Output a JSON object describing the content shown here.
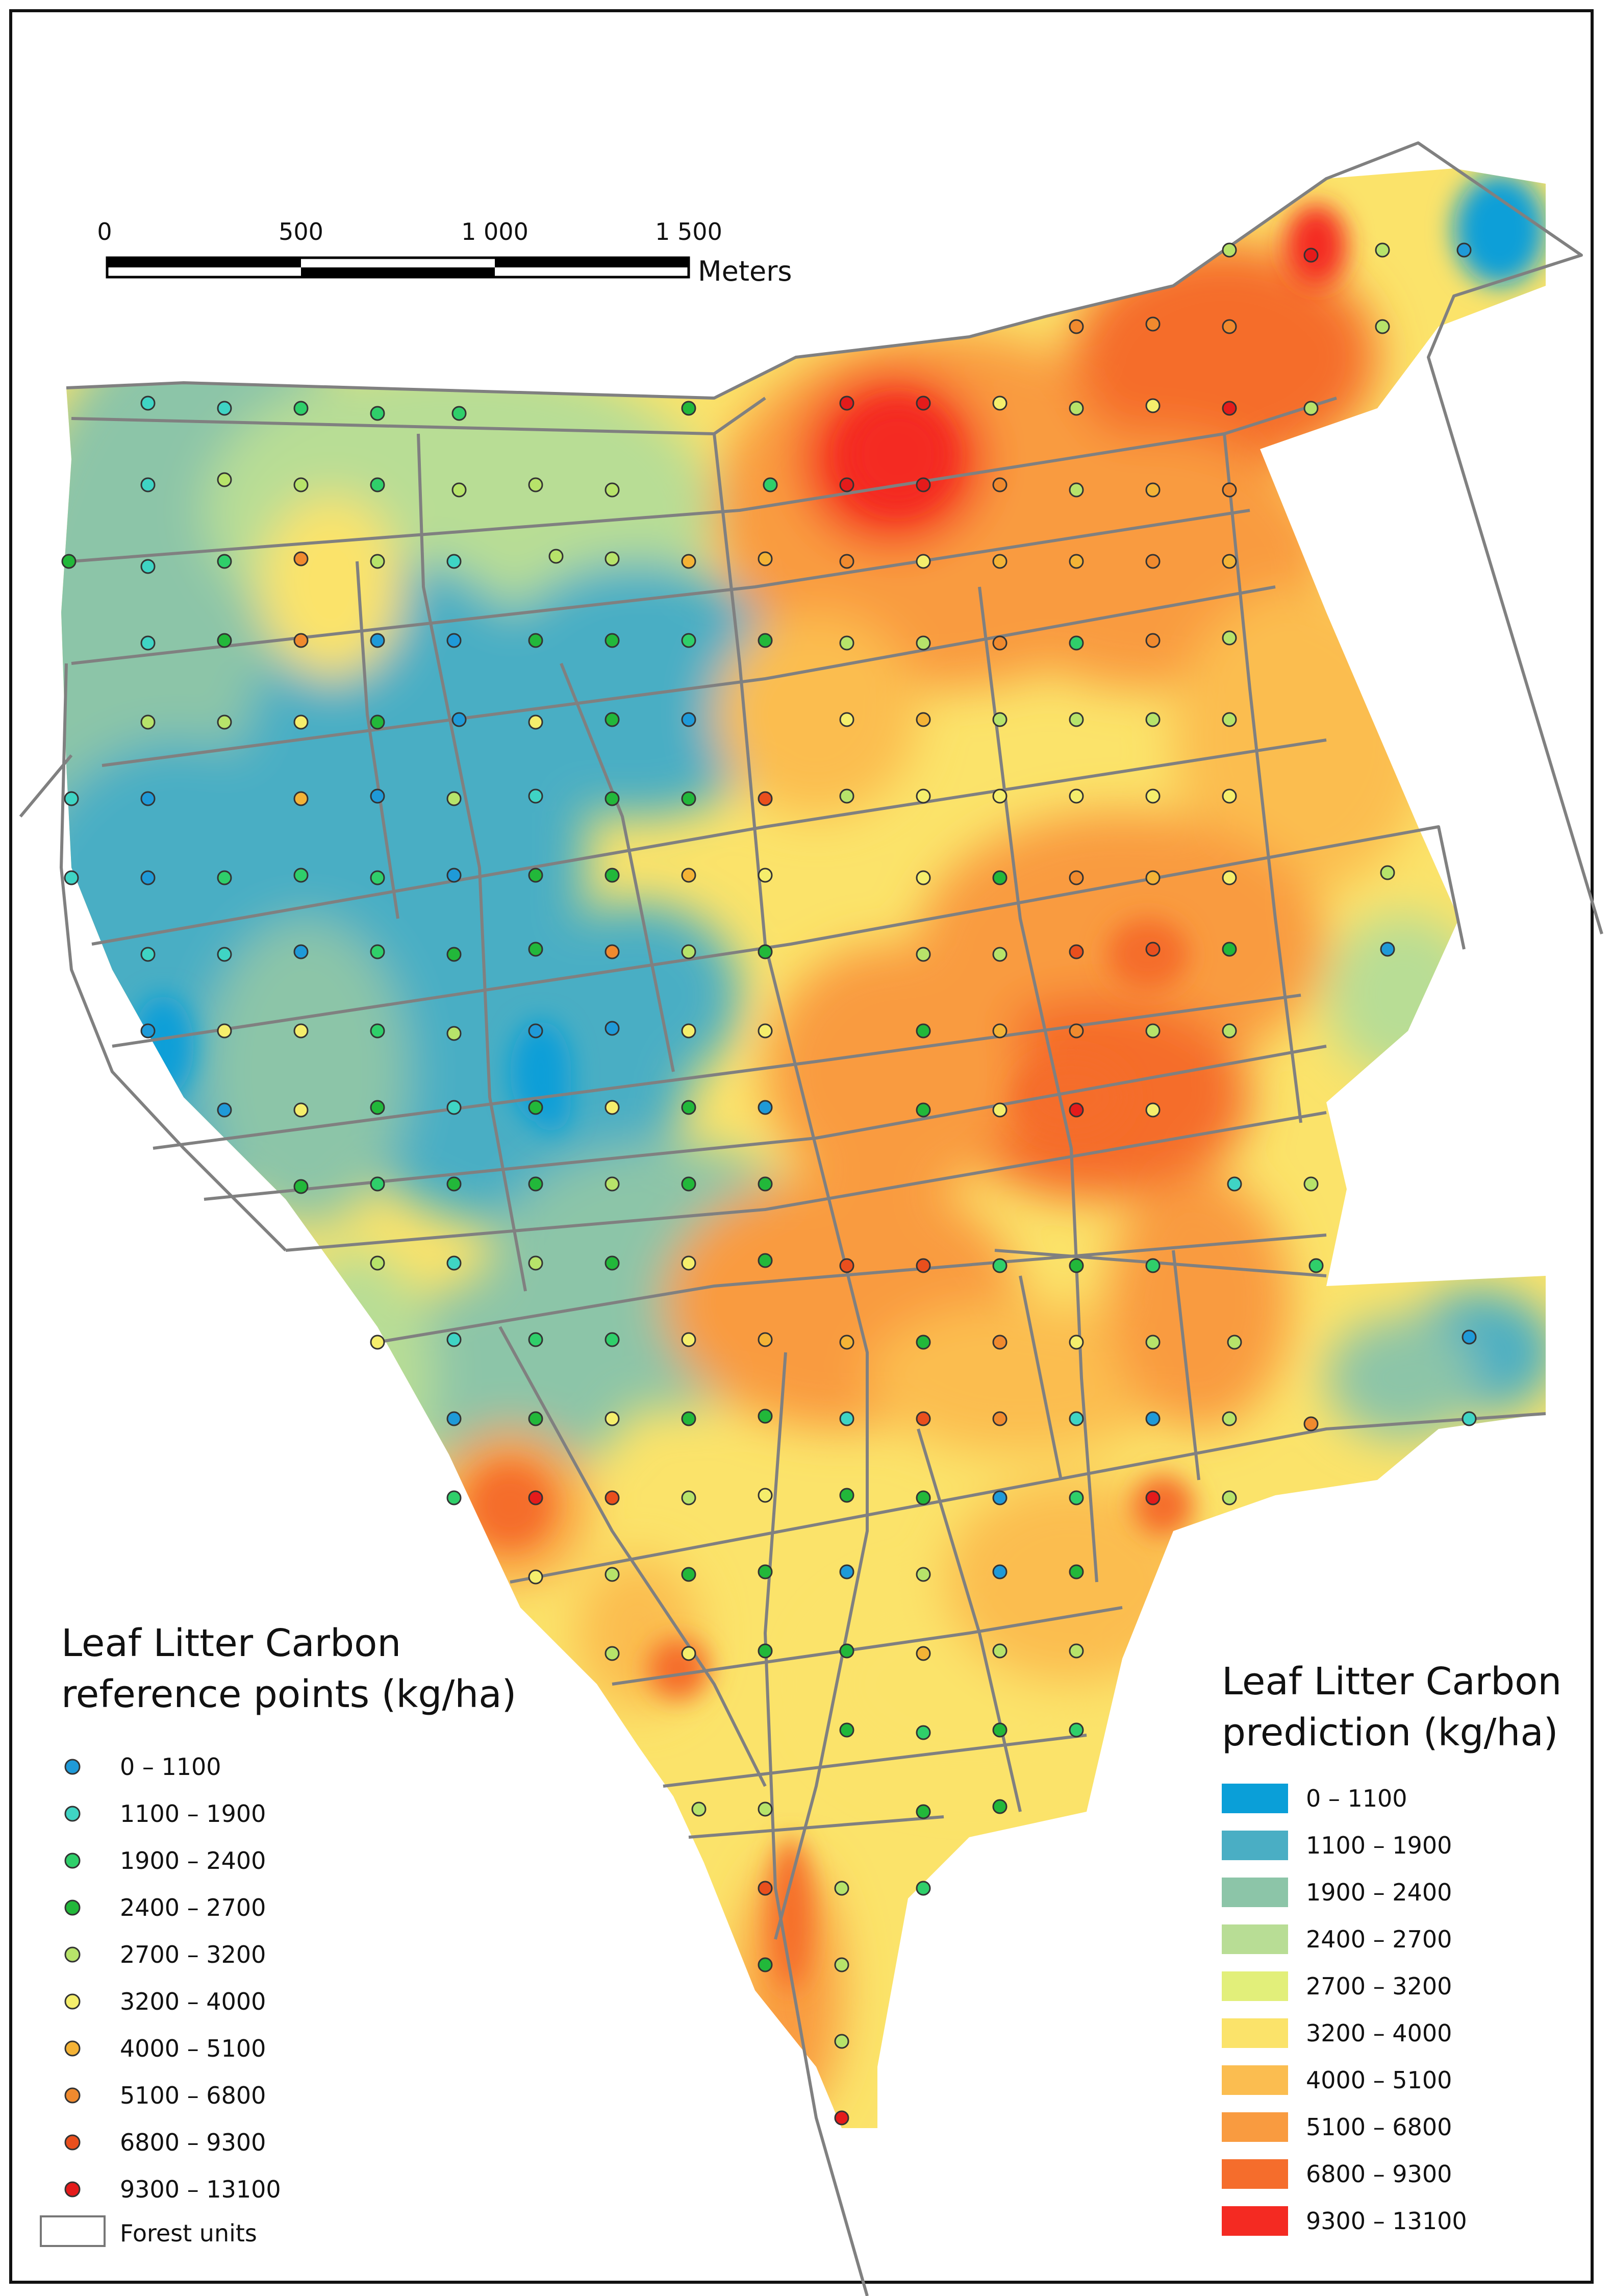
{
  "scale_bar": {
    "ticks": [
      "0",
      "500",
      "1 000",
      "1 500"
    ],
    "unit": "Meters"
  },
  "points_legend": {
    "title_line1": "Leaf Litter Carbon",
    "title_line2": "reference points (kg/ha)",
    "classes": [
      {
        "label": "0 – 1100",
        "color": "#1f9ad8"
      },
      {
        "label": "1100 – 1900",
        "color": "#3fd4c4"
      },
      {
        "label": "1900 – 2400",
        "color": "#2fcf6a"
      },
      {
        "label": "2400 – 2700",
        "color": "#22b83a"
      },
      {
        "label": "2700 – 3200",
        "color": "#b7e36a"
      },
      {
        "label": "3200 – 4000",
        "color": "#f5ee6c"
      },
      {
        "label": "4000 – 5100",
        "color": "#f4b336"
      },
      {
        "label": "5100 – 6800",
        "color": "#f08a2e"
      },
      {
        "label": "6800 – 9300",
        "color": "#ea4f1d"
      },
      {
        "label": "9300 – 13100",
        "color": "#e41b1b"
      }
    ],
    "forest_units_label": "Forest units"
  },
  "prediction_legend": {
    "title_line1": "Leaf Litter Carbon",
    "title_line2": "prediction (kg/ha)",
    "classes": [
      {
        "label": "0 – 1100",
        "color": "#0a9fd8"
      },
      {
        "label": "1100 – 1900",
        "color": "#4aaec4"
      },
      {
        "label": "1900 – 2400",
        "color": "#8cc5a8"
      },
      {
        "label": "2400 – 2700",
        "color": "#b8dd95"
      },
      {
        "label": "2700 – 3200",
        "color": "#e2ef7a"
      },
      {
        "label": "3200 – 4000",
        "color": "#fbe36a"
      },
      {
        "label": "4000 – 5100",
        "color": "#fbbd50"
      },
      {
        "label": "5100 – 6800",
        "color": "#f99b40"
      },
      {
        "label": "6800 – 9300",
        "color": "#f56d2c"
      },
      {
        "label": "9300 – 13100",
        "color": "#f42a22"
      }
    ]
  },
  "colors": {
    "unit_outline": "#808080",
    "frame": "#111111"
  }
}
